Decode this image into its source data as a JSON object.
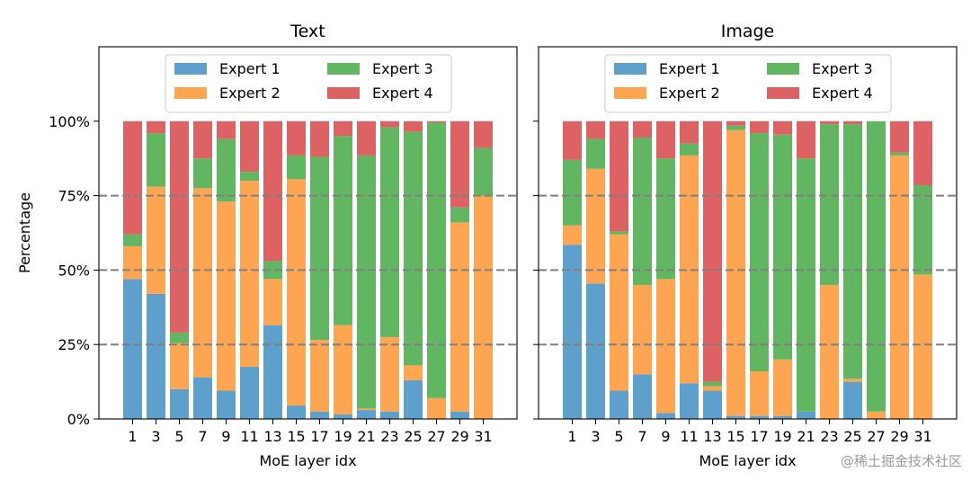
{
  "figure": {
    "ylabel": "Percentage",
    "watermark": "@稀土掘金技术社区"
  },
  "colors": {
    "expert1": "#5f9fcc",
    "expert2": "#fda550",
    "expert3": "#62b662",
    "expert4": "#dd6263",
    "grid": "#808080"
  },
  "chart_data": [
    {
      "type": "bar",
      "stacked": true,
      "title": "Text",
      "xlabel": "MoE layer idx",
      "ylabel": "Percentage",
      "ylim": [
        0,
        125
      ],
      "yticks": [
        "0%",
        "25%",
        "50%",
        "75%",
        "100%"
      ],
      "hlines": [
        25,
        50,
        75
      ],
      "legend_loc": "upper center",
      "categories": [
        "1",
        "3",
        "5",
        "7",
        "9",
        "11",
        "13",
        "15",
        "17",
        "19",
        "21",
        "23",
        "25",
        "27",
        "29",
        "31"
      ],
      "series": [
        {
          "name": "Expert 1",
          "values": [
            47,
            42,
            10,
            14,
            9.5,
            17.5,
            31.5,
            4.5,
            2.5,
            1.5,
            3,
            2.5,
            13,
            0,
            2.5,
            0
          ]
        },
        {
          "name": "Expert 2",
          "values": [
            11,
            36,
            15.5,
            63.5,
            63.5,
            62.5,
            15.5,
            76,
            24,
            30,
            0.5,
            25,
            5,
            7,
            63.5,
            75
          ]
        },
        {
          "name": "Expert 3",
          "values": [
            4,
            18,
            3.5,
            10,
            21,
            3,
            6,
            8,
            61.5,
            63.5,
            85,
            70.5,
            78.5,
            92.5,
            5,
            16
          ]
        },
        {
          "name": "Expert 4",
          "values": [
            38,
            4,
            71,
            12.5,
            6,
            17,
            47,
            11.5,
            12,
            5,
            11.5,
            2,
            3.5,
            0.5,
            29,
            9
          ]
        }
      ]
    },
    {
      "type": "bar",
      "stacked": true,
      "title": "Image",
      "xlabel": "MoE layer idx",
      "ylabel": "",
      "ylim": [
        0,
        125
      ],
      "yticks": [],
      "hlines": [
        25,
        50,
        75
      ],
      "legend_loc": "upper center",
      "categories": [
        "1",
        "3",
        "5",
        "7",
        "9",
        "11",
        "13",
        "15",
        "17",
        "19",
        "21",
        "23",
        "25",
        "27",
        "29",
        "31"
      ],
      "series": [
        {
          "name": "Expert 1",
          "values": [
            58.5,
            45.5,
            9.5,
            15,
            2,
            12,
            9.5,
            1,
            1,
            1,
            2.5,
            0,
            12.5,
            0,
            0,
            0
          ]
        },
        {
          "name": "Expert 2",
          "values": [
            6.5,
            38.5,
            52.5,
            30,
            45,
            76.5,
            1.5,
            96,
            15,
            19,
            0,
            45,
            1,
            2.5,
            88.5,
            48.5
          ]
        },
        {
          "name": "Expert 3",
          "values": [
            22,
            10,
            1,
            49.5,
            40.5,
            4,
            1.5,
            1.5,
            80,
            75.5,
            85,
            54,
            85.5,
            97.5,
            1,
            30
          ]
        },
        {
          "name": "Expert 4",
          "values": [
            13,
            6,
            37,
            5.5,
            12.5,
            7.5,
            87.5,
            1.5,
            4,
            4.5,
            12.5,
            1,
            1,
            0,
            10.5,
            21.5
          ]
        }
      ]
    }
  ]
}
